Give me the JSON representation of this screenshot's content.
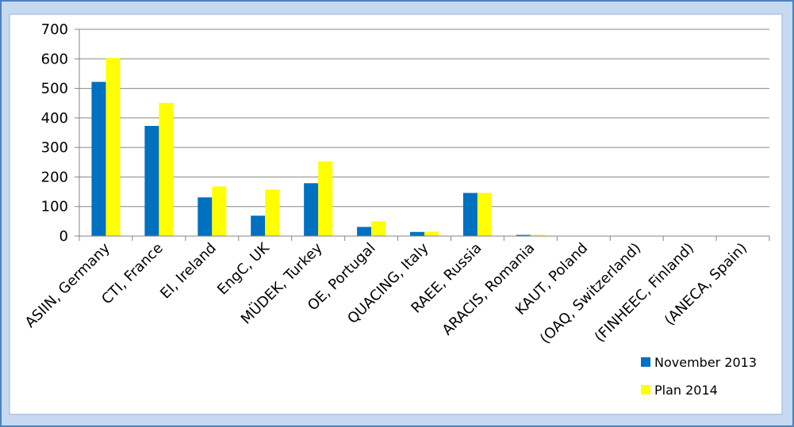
{
  "chart_data": {
    "type": "bar",
    "categories": [
      "ASIIN, Germany",
      "CTI, France",
      "EI, Ireland",
      "EngC, UK",
      "MÜDEK, Turkey",
      "OE, Portugal",
      "QUACING, Italy",
      "RAEE, Russia",
      "ARACIS, Romania",
      "KAUT, Poland",
      "(OAQ, Switzerland)",
      "(FINHEEC, Finland)",
      "(ANECA, Spain)"
    ],
    "series": [
      {
        "name": "November  2013",
        "color": "#0070c0",
        "values": [
          522,
          373,
          131,
          69,
          179,
          31,
          14,
          146,
          4,
          0,
          0,
          0,
          0
        ]
      },
      {
        "name": "Plan 2014",
        "color": "#ffff00",
        "values": [
          603,
          451,
          168,
          157,
          253,
          50,
          15,
          146,
          4,
          0,
          0,
          0,
          0
        ]
      }
    ],
    "ylim": [
      0,
      700
    ],
    "yticks": [
      0,
      100,
      200,
      300,
      400,
      500,
      600,
      700
    ],
    "grid": true,
    "legend_position": "bottom-right"
  }
}
